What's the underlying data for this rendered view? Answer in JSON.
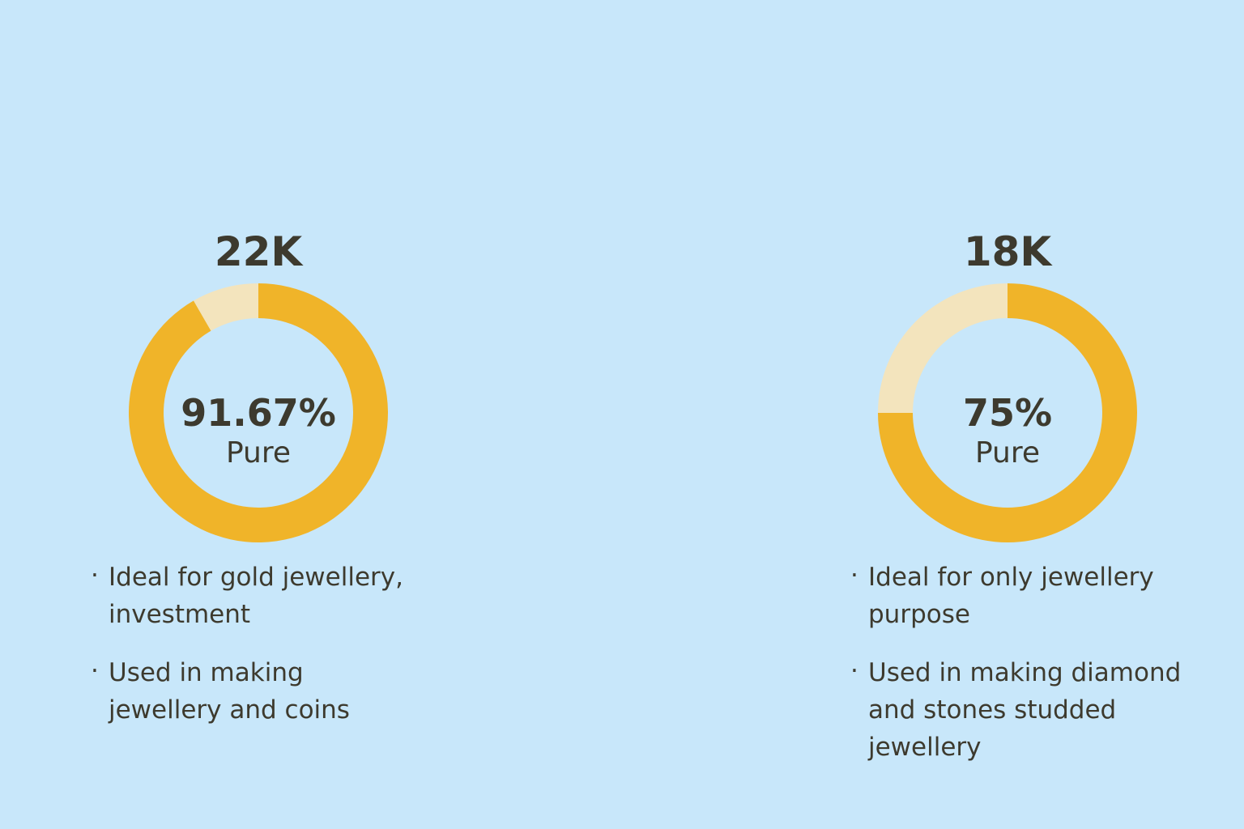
{
  "chart_data": [
    {
      "type": "donut",
      "title": "22K",
      "values": [
        91.67,
        8.33
      ],
      "value_labels": [
        "91.67%",
        null
      ],
      "colors": [
        "#f0b429",
        "#f3e4bd"
      ],
      "center_text": "Pure",
      "notes": [
        "Ideal for gold jewellery, investment",
        "Used in making jewellery and coins"
      ]
    },
    {
      "type": "donut",
      "title": "18K",
      "values": [
        75,
        25
      ],
      "value_labels": [
        "75%",
        null
      ],
      "colors": [
        "#f0b429",
        "#f3e4bd"
      ],
      "center_text": "Pure",
      "notes": [
        "Ideal for only jewellery purpose",
        "Used in making diamond and stones studded jewellery"
      ]
    }
  ]
}
